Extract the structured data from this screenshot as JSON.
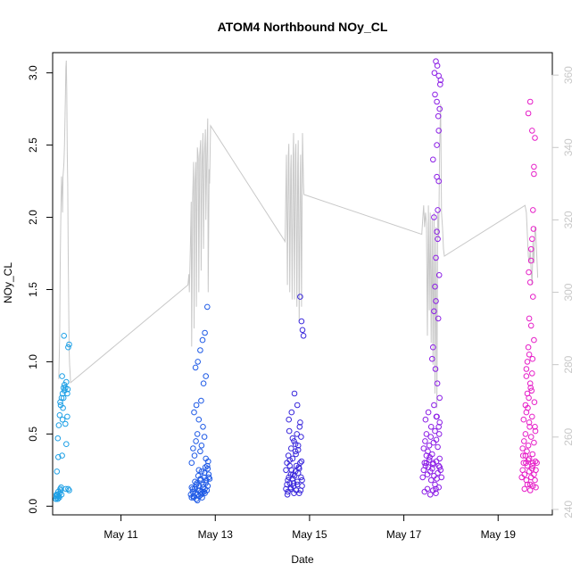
{
  "chart_data": {
    "type": "scatter",
    "title": "ATOM4 Northbound NOy_CL",
    "xlabel": "Date",
    "ylabel": "NOy_CL",
    "x_axis": {
      "unit": "day-of-May",
      "range": [
        9.55,
        20.15
      ],
      "ticks": [
        11,
        13,
        15,
        17,
        19
      ],
      "tick_labels": [
        "May 11",
        "May 13",
        "May 15",
        "May 17",
        "May 19"
      ]
    },
    "y_axis": {
      "range": [
        -0.06,
        3.14
      ],
      "ticks": [
        0.0,
        0.5,
        1.0,
        1.5,
        2.0,
        2.5,
        3.0
      ],
      "tick_labels": [
        "0.0",
        "0.5",
        "1.0",
        "1.5",
        "2.0",
        "2.5",
        "3.0"
      ]
    },
    "y2_axis": {
      "color": "#c8c8c8",
      "range": [
        238.5,
        366.2
      ],
      "ticks": [
        240,
        260,
        280,
        300,
        320,
        340,
        360
      ],
      "tick_labels": [
        "240",
        "260",
        "280",
        "300",
        "320",
        "340",
        "360"
      ]
    },
    "grid": false,
    "legend": "none",
    "colors": {
      "flight1": "#1EA0E6",
      "flight2": "#1E5AE6",
      "flight3": "#3A28DC",
      "flight4": "#8C1EE6",
      "flight5": "#E61EC8",
      "secondary_line": "#c8c8c8"
    },
    "series": [
      {
        "axis": "y",
        "color_key": "flight1",
        "x": [
          9.62,
          9.63,
          9.64,
          9.65,
          9.66,
          9.67,
          9.68,
          9.69,
          9.7,
          9.71,
          9.72,
          9.73,
          9.74,
          9.75,
          9.76,
          9.77,
          9.78,
          9.8,
          9.82,
          9.84,
          9.86,
          9.88,
          9.9,
          9.62,
          9.64,
          9.66,
          9.68,
          9.7,
          9.72,
          9.74,
          9.76,
          9.78,
          9.8,
          9.82,
          9.84,
          9.86,
          9.88,
          9.9,
          9.63,
          9.67,
          9.71,
          9.75,
          9.79,
          9.83,
          9.87
        ],
        "y": [
          0.05,
          0.07,
          0.06,
          0.08,
          0.05,
          0.1,
          0.07,
          0.06,
          0.09,
          0.12,
          0.11,
          0.13,
          0.08,
          0.35,
          0.6,
          0.68,
          0.75,
          0.8,
          0.82,
          0.86,
          0.78,
          0.12,
          0.11,
          0.05,
          0.24,
          0.47,
          0.56,
          0.63,
          0.7,
          0.75,
          0.78,
          0.82,
          0.84,
          0.57,
          0.43,
          0.62,
          1.1,
          1.12,
          0.08,
          0.34,
          0.72,
          0.9,
          1.18,
          0.12,
          0.81
        ]
      },
      {
        "axis": "y",
        "color_key": "flight2",
        "x": [
          12.48,
          12.5,
          12.52,
          12.54,
          12.56,
          12.58,
          12.6,
          12.62,
          12.64,
          12.66,
          12.68,
          12.7,
          12.72,
          12.74,
          12.76,
          12.78,
          12.8,
          12.82,
          12.84,
          12.86,
          12.88,
          12.5,
          12.53,
          12.56,
          12.59,
          12.62,
          12.65,
          12.68,
          12.71,
          12.74,
          12.77,
          12.8,
          12.83,
          12.86,
          12.55,
          12.6,
          12.65,
          12.7,
          12.75,
          12.8,
          12.58,
          12.63,
          12.68,
          12.73,
          12.78,
          12.83,
          12.6,
          12.66,
          12.72,
          12.78,
          12.62,
          12.7,
          12.76,
          12.5,
          12.57,
          12.64,
          12.71,
          12.79,
          12.85,
          12.52,
          12.61,
          12.69,
          12.77,
          12.84,
          12.54,
          12.67,
          12.74,
          12.81
        ],
        "y": [
          0.08,
          0.06,
          0.1,
          0.07,
          0.12,
          0.09,
          0.15,
          0.08,
          0.11,
          0.14,
          0.18,
          0.1,
          0.09,
          0.13,
          0.2,
          0.12,
          0.16,
          0.11,
          0.14,
          0.22,
          0.19,
          0.3,
          0.4,
          0.35,
          0.45,
          0.5,
          0.25,
          0.38,
          0.42,
          0.55,
          0.48,
          0.33,
          0.28,
          0.2,
          0.65,
          0.7,
          0.6,
          0.73,
          0.85,
          0.9,
          0.96,
          1.0,
          1.08,
          1.15,
          1.2,
          1.38,
          0.05,
          0.07,
          0.06,
          0.09,
          0.04,
          0.08,
          0.1,
          0.13,
          0.17,
          0.21,
          0.24,
          0.27,
          0.31,
          0.12,
          0.16,
          0.19,
          0.23,
          0.26,
          0.06,
          0.11,
          0.15,
          0.18
        ]
      },
      {
        "axis": "y",
        "color_key": "flight3",
        "x": [
          14.5,
          14.52,
          14.54,
          14.56,
          14.58,
          14.6,
          14.62,
          14.64,
          14.66,
          14.68,
          14.7,
          14.72,
          14.74,
          14.76,
          14.78,
          14.8,
          14.82,
          14.84,
          14.52,
          14.55,
          14.58,
          14.61,
          14.64,
          14.67,
          14.7,
          14.73,
          14.76,
          14.79,
          14.82,
          14.54,
          14.6,
          14.66,
          14.72,
          14.78,
          14.84,
          14.56,
          14.62,
          14.68,
          14.74,
          14.8,
          14.5,
          14.58,
          14.65,
          14.71,
          14.77,
          14.83,
          14.53,
          14.6,
          14.67,
          14.74,
          14.81,
          14.57,
          14.64,
          14.7,
          14.76
        ],
        "y": [
          0.12,
          0.15,
          0.18,
          0.2,
          0.16,
          0.22,
          0.25,
          0.19,
          0.14,
          0.21,
          0.24,
          0.28,
          0.17,
          0.23,
          0.26,
          0.3,
          0.2,
          0.18,
          0.3,
          0.35,
          0.28,
          0.4,
          0.33,
          0.45,
          0.38,
          0.5,
          0.42,
          0.55,
          0.48,
          0.1,
          0.13,
          0.16,
          0.11,
          0.09,
          0.14,
          0.6,
          0.65,
          0.78,
          0.7,
          0.58,
          0.25,
          0.32,
          0.22,
          0.36,
          0.27,
          0.31,
          0.08,
          0.12,
          0.09,
          0.15,
          0.11,
          0.52,
          0.47,
          0.43,
          0.39
        ]
      },
      {
        "axis": "y",
        "color_key": "flight3",
        "x": [
          14.8,
          14.83,
          14.85,
          14.87
        ],
        "y": [
          1.45,
          1.28,
          1.22,
          1.18
        ]
      },
      {
        "axis": "y",
        "color_key": "flight4",
        "x": [
          17.4,
          17.42,
          17.44,
          17.46,
          17.48,
          17.5,
          17.52,
          17.54,
          17.56,
          17.58,
          17.6,
          17.62,
          17.64,
          17.66,
          17.68,
          17.7,
          17.72,
          17.74,
          17.76,
          17.78,
          17.8,
          17.42,
          17.45,
          17.48,
          17.51,
          17.54,
          17.57,
          17.6,
          17.63,
          17.66,
          17.69,
          17.72,
          17.75,
          17.44,
          17.5,
          17.56,
          17.62,
          17.68,
          17.74,
          17.46,
          17.52,
          17.58,
          17.64,
          17.7,
          17.76,
          17.48,
          17.55,
          17.62,
          17.69,
          17.76
        ],
        "y": [
          0.2,
          0.25,
          0.3,
          0.28,
          0.35,
          0.22,
          0.27,
          0.32,
          0.24,
          0.18,
          0.26,
          0.3,
          0.21,
          0.15,
          0.12,
          0.19,
          0.23,
          0.28,
          0.33,
          0.25,
          0.2,
          0.4,
          0.45,
          0.5,
          0.38,
          0.42,
          0.48,
          0.36,
          0.44,
          0.52,
          0.46,
          0.41,
          0.5,
          0.1,
          0.12,
          0.08,
          0.11,
          0.09,
          0.13,
          0.6,
          0.65,
          0.55,
          0.7,
          0.62,
          0.58,
          0.3,
          0.34,
          0.29,
          0.31,
          0.27
        ]
      },
      {
        "axis": "y",
        "color_key": "flight4",
        "x": [
          17.6,
          17.62,
          17.64,
          17.66,
          17.68,
          17.7,
          17.72,
          17.74,
          17.76,
          17.78,
          17.65,
          17.68,
          17.71,
          17.74,
          17.77,
          17.66,
          17.7,
          17.74,
          17.62,
          17.7,
          17.64,
          17.72,
          17.75,
          17.68,
          17.73,
          17.67,
          17.71,
          17.76,
          17.69,
          17.74,
          17.7,
          17.73
        ],
        "y": [
          1.02,
          1.1,
          1.35,
          1.52,
          1.72,
          1.9,
          2.05,
          2.25,
          2.75,
          2.95,
          3.0,
          3.08,
          3.05,
          2.98,
          2.92,
          2.85,
          2.8,
          2.6,
          2.4,
          2.28,
          2.0,
          1.85,
          1.6,
          1.42,
          1.3,
          0.95,
          0.85,
          0.75,
          0.62,
          0.55,
          2.5,
          2.7
        ]
      },
      {
        "axis": "y",
        "color_key": "flight5",
        "x": [
          19.5,
          19.52,
          19.54,
          19.56,
          19.58,
          19.6,
          19.62,
          19.64,
          19.66,
          19.68,
          19.7,
          19.72,
          19.74,
          19.76,
          19.78,
          19.8,
          19.82,
          19.52,
          19.55,
          19.58,
          19.61,
          19.64,
          19.67,
          19.7,
          19.73,
          19.76,
          19.79,
          19.54,
          19.6,
          19.66,
          19.72,
          19.78,
          19.56,
          19.62,
          19.68,
          19.74,
          19.8,
          19.58,
          19.65,
          19.71,
          19.77,
          19.53,
          19.59,
          19.66,
          19.73,
          19.79
        ],
        "y": [
          0.2,
          0.25,
          0.3,
          0.22,
          0.35,
          0.18,
          0.28,
          0.32,
          0.24,
          0.15,
          0.2,
          0.26,
          0.3,
          0.22,
          0.18,
          0.25,
          0.3,
          0.4,
          0.45,
          0.5,
          0.38,
          0.42,
          0.55,
          0.48,
          0.36,
          0.44,
          0.52,
          0.6,
          0.65,
          0.58,
          0.62,
          0.55,
          0.12,
          0.15,
          0.11,
          0.14,
          0.13,
          0.7,
          0.75,
          0.8,
          0.72,
          0.35,
          0.3,
          0.33,
          0.28,
          0.31
        ]
      },
      {
        "axis": "y",
        "color_key": "flight5",
        "x": [
          19.6,
          19.62,
          19.64,
          19.66,
          19.68,
          19.7,
          19.72,
          19.74,
          19.76,
          19.78,
          19.64,
          19.68,
          19.72,
          19.76,
          19.6,
          19.66,
          19.7,
          19.74,
          19.62,
          19.68,
          19.72,
          19.76,
          19.65,
          19.7,
          19.75,
          19.63,
          19.69,
          19.73
        ],
        "y": [
          0.9,
          1.0,
          1.1,
          1.3,
          1.55,
          1.7,
          1.85,
          2.05,
          2.3,
          2.55,
          2.72,
          2.8,
          2.6,
          2.35,
          0.95,
          1.05,
          1.25,
          1.45,
          0.78,
          0.85,
          0.92,
          1.15,
          1.62,
          1.78,
          1.92,
          0.68,
          0.82,
          1.02
        ]
      },
      {
        "axis": "y2",
        "type": "line",
        "color_key": "secondary_line",
        "x": [
          9.68,
          9.7,
          9.71,
          9.72,
          9.73,
          9.74,
          9.75,
          9.76,
          9.77,
          9.78,
          9.79,
          9.8,
          9.81,
          9.82,
          9.83,
          9.84,
          9.85,
          9.86,
          9.87,
          9.88,
          9.89,
          9.9,
          9.91,
          9.92,
          9.93,
          12.42,
          12.44,
          12.45,
          12.47,
          12.49,
          12.5,
          12.52,
          12.54,
          12.55,
          12.57,
          12.59,
          12.6,
          12.62,
          12.64,
          12.65,
          12.67,
          12.69,
          12.7,
          12.72,
          12.74,
          12.75,
          12.77,
          12.79,
          12.8,
          12.82,
          12.84,
          12.85,
          12.87,
          12.88,
          12.9,
          14.48,
          14.5,
          14.51,
          14.53,
          14.55,
          14.56,
          14.58,
          14.6,
          14.61,
          14.63,
          14.65,
          14.66,
          14.68,
          14.7,
          14.71,
          14.73,
          14.75,
          14.76,
          14.78,
          14.8,
          14.81,
          14.83,
          14.85,
          14.87,
          14.88,
          17.38,
          17.4,
          17.42,
          17.44,
          17.46,
          17.48,
          17.5,
          17.52,
          17.54,
          17.56,
          17.58,
          17.6,
          17.62,
          17.64,
          17.66,
          17.68,
          17.7,
          17.72,
          17.74,
          17.76,
          17.78,
          17.8,
          17.82,
          17.84,
          17.86,
          19.57,
          19.6,
          19.62,
          19.64,
          19.66,
          19.68,
          19.7,
          19.72,
          19.74,
          19.76,
          19.78,
          19.8,
          19.82,
          19.84
        ],
        "y": [
          276,
          288,
          308,
          318,
          326,
          332,
          328,
          322,
          332,
          334,
          336,
          340,
          346,
          354,
          362,
          364,
          356,
          338,
          330,
          312,
          296,
          284,
          280,
          278,
          275,
          302,
          305,
          300,
          312,
          325,
          285,
          326,
          336,
          290,
          330,
          336,
          296,
          340,
          337,
          300,
          338,
          342,
          306,
          336,
          344,
          312,
          338,
          345,
          320,
          338,
          348,
          300,
          334,
          330,
          346,
          314,
          330,
          338,
          302,
          338,
          341,
          300,
          334,
          338,
          298,
          336,
          344,
          298,
          338,
          341,
          296,
          335,
          342,
          292,
          332,
          338,
          296,
          344,
          330,
          327,
          316,
          320,
          324,
          318,
          322,
          319,
          288,
          324,
          295,
          322,
          286,
          320,
          280,
          322,
          272,
          318,
          268,
          322,
          315,
          340,
          352,
          322,
          318,
          312,
          310,
          324,
          322,
          316,
          310,
          308,
          312,
          306,
          302,
          314,
          308,
          318,
          316,
          310,
          304
        ]
      }
    ]
  }
}
